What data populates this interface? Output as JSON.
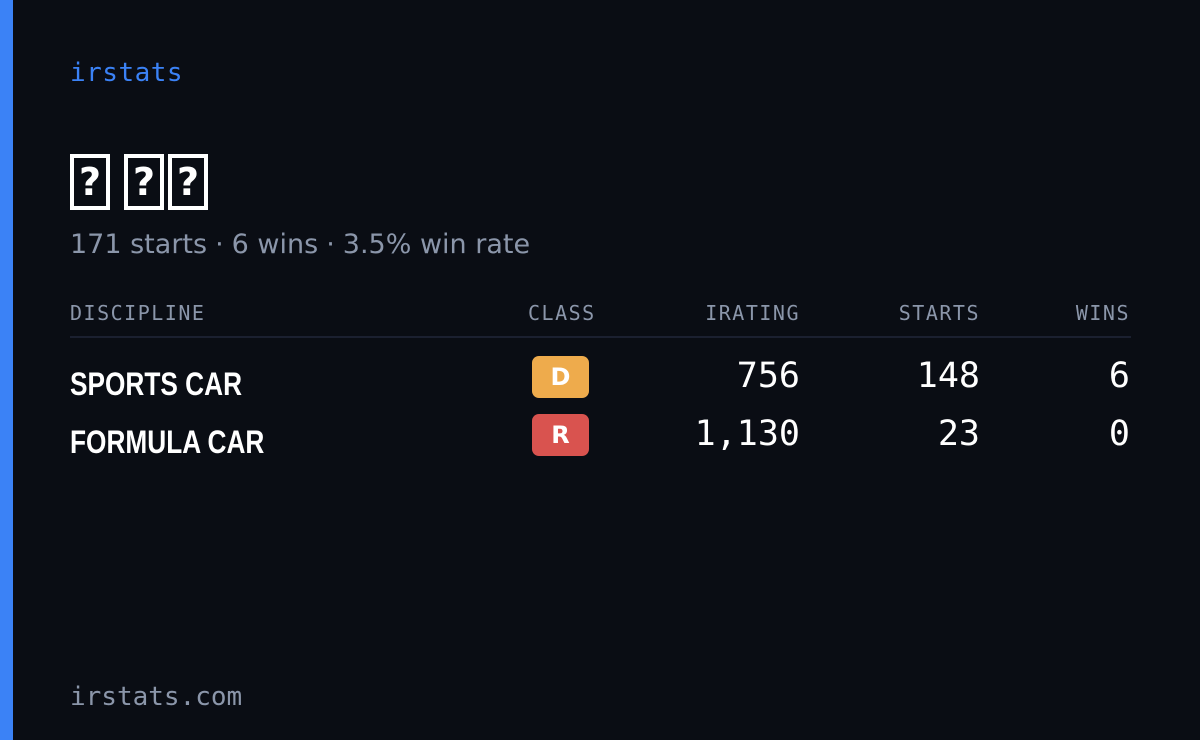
{
  "brand": "irstats",
  "driver": {
    "name_glyphs": [
      [
        "?"
      ],
      [
        "?",
        "?"
      ]
    ]
  },
  "summary": {
    "starts": "171 starts",
    "wins": "6 wins",
    "win_rate": "3.5% win rate",
    "separator": "·"
  },
  "table": {
    "headers": {
      "discipline": "DISCIPLINE",
      "class": "CLASS",
      "irating": "IRATING",
      "starts": "STARTS",
      "wins": "WINS"
    },
    "rows": [
      {
        "discipline": "SPORTS CAR",
        "class": "D",
        "class_color": "#eeab4c",
        "irating": "756",
        "starts": "148",
        "wins": "6"
      },
      {
        "discipline": "FORMULA CAR",
        "class": "R",
        "class_color": "#d9534f",
        "irating": "1,130",
        "starts": "23",
        "wins": "0"
      }
    ]
  },
  "footer": "irstats.com",
  "colors": {
    "accent": "#3b82f6",
    "background": "#0a0d14",
    "muted_text": "#8b96aa"
  }
}
